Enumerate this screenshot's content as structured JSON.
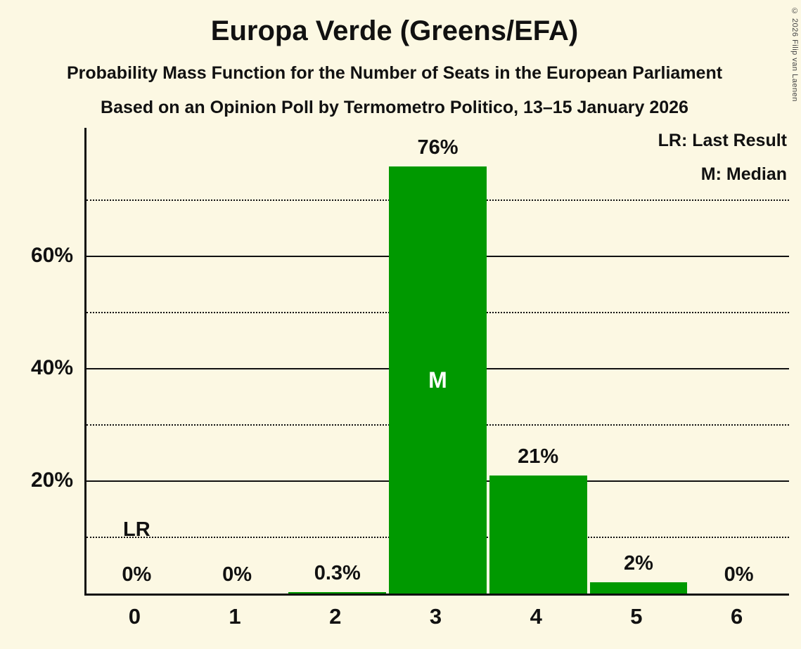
{
  "title": "Europa Verde (Greens/EFA)",
  "subtitle1": "Probability Mass Function for the Number of Seats in the European Parliament",
  "subtitle2": "Based on an Opinion Poll by Termometro Politico, 13–15 January 2026",
  "copyright": "© 2026 Filip van Laenen",
  "legend": {
    "lr": "LR: Last Result",
    "m": "M: Median"
  },
  "colors": {
    "background": "#FCF8E3",
    "bar": "#009900",
    "text": "#111111",
    "median_label": "#FFFFFF"
  },
  "chart_data": {
    "type": "bar",
    "categories": [
      "0",
      "1",
      "2",
      "3",
      "4",
      "5",
      "6"
    ],
    "values": [
      0,
      0,
      0.3,
      76,
      21,
      2,
      0
    ],
    "value_labels": [
      "0%",
      "0%",
      "0.3%",
      "76%",
      "21%",
      "2%",
      "0%"
    ],
    "title": "Europa Verde (Greens/EFA)",
    "xlabel": "",
    "ylabel": "",
    "y_tick_labels": [
      "20%",
      "40%",
      "60%"
    ],
    "solid_gridlines": [
      20,
      40,
      60
    ],
    "dotted_gridlines": [
      10,
      30,
      50,
      70
    ],
    "ylim": [
      0,
      82.9
    ],
    "median_category": "3",
    "median_marker": "M",
    "last_result_category": "0",
    "last_result_marker": "LR",
    "legend_position": "top-right",
    "grid": true
  }
}
